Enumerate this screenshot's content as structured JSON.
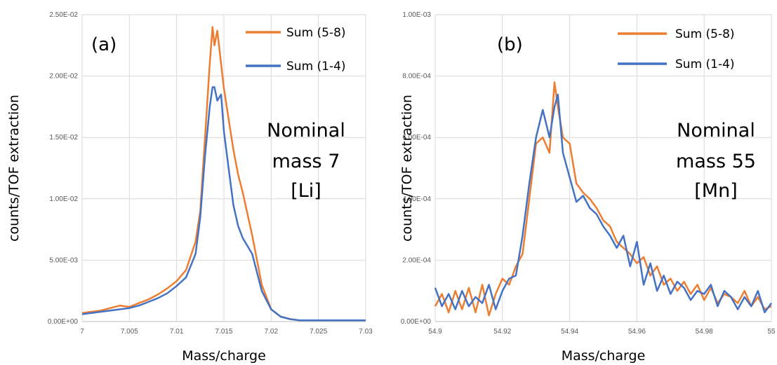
{
  "colors": {
    "orange": "#ED7D31",
    "blue": "#4472C4"
  },
  "chart_data": [
    {
      "type": "line",
      "panel_label": "(a)",
      "xlabel": "Mass/charge",
      "ylabel": "counts/TOF extraction",
      "xlim": [
        7,
        7.03
      ],
      "ylim": [
        0,
        0.025
      ],
      "x_ticks": [
        7,
        7.005,
        7.01,
        7.015,
        7.02,
        7.025,
        7.03
      ],
      "x_tick_labels": [
        "7",
        "7.005",
        "7.01",
        "7.015",
        "7.02",
        "7.025",
        "7.03"
      ],
      "y_ticks": [
        0,
        0.005,
        0.01,
        0.015,
        0.02,
        0.025
      ],
      "y_tick_labels": [
        "0.00E+00",
        "5.00E-03",
        "1.00E-02",
        "1.50E-02",
        "2.00E-02",
        "2.50E-02"
      ],
      "grid": true,
      "legend": "top-right",
      "annotation": [
        "Nominal",
        "mass 7",
        "[Li]"
      ],
      "series": [
        {
          "name": "Sum (5-8)",
          "color": "#ED7D31",
          "x": [
            7.0,
            7.001,
            7.002,
            7.003,
            7.004,
            7.005,
            7.006,
            7.007,
            7.008,
            7.009,
            7.01,
            7.011,
            7.012,
            7.0125,
            7.013,
            7.0135,
            7.0138,
            7.014,
            7.0143,
            7.0147,
            7.015,
            7.0155,
            7.016,
            7.0165,
            7.017,
            7.018,
            7.019,
            7.02,
            7.021,
            7.022,
            7.023,
            7.025,
            7.027,
            7.03
          ],
          "y": [
            0.0007,
            0.0008,
            0.0009,
            0.0011,
            0.0013,
            0.0012,
            0.0015,
            0.0018,
            0.0022,
            0.0027,
            0.0033,
            0.0042,
            0.0065,
            0.009,
            0.015,
            0.021,
            0.024,
            0.0225,
            0.0237,
            0.021,
            0.019,
            0.0165,
            0.014,
            0.012,
            0.0105,
            0.007,
            0.003,
            0.001,
            0.0004,
            0.0002,
            0.0001,
            0.0001,
            0.0001,
            0.0001
          ]
        },
        {
          "name": "Sum (1-4)",
          "color": "#4472C4",
          "x": [
            7.0,
            7.001,
            7.002,
            7.003,
            7.004,
            7.005,
            7.006,
            7.007,
            7.008,
            7.009,
            7.01,
            7.011,
            7.012,
            7.0125,
            7.013,
            7.0135,
            7.0138,
            7.014,
            7.0143,
            7.0147,
            7.015,
            7.0155,
            7.016,
            7.0165,
            7.017,
            7.018,
            7.019,
            7.02,
            7.021,
            7.022,
            7.023,
            7.025,
            7.027,
            7.03
          ],
          "y": [
            0.0006,
            0.0007,
            0.0008,
            0.0009,
            0.001,
            0.0011,
            0.0013,
            0.0016,
            0.0019,
            0.0023,
            0.0029,
            0.0036,
            0.0055,
            0.0085,
            0.0135,
            0.0175,
            0.0191,
            0.0191,
            0.018,
            0.0185,
            0.0155,
            0.0125,
            0.0095,
            0.0078,
            0.0068,
            0.0055,
            0.0025,
            0.001,
            0.0004,
            0.0002,
            0.0001,
            0.0001,
            0.0001,
            0.0001
          ]
        }
      ]
    },
    {
      "type": "line",
      "panel_label": "(b)",
      "xlabel": "Mass/charge",
      "ylabel": "counts/TOF extraction",
      "xlim": [
        54.9,
        55
      ],
      "ylim": [
        0,
        0.001
      ],
      "x_ticks": [
        54.9,
        54.92,
        54.94,
        54.96,
        54.98,
        55
      ],
      "x_tick_labels": [
        "54.9",
        "54.92",
        "54.94",
        "54.96",
        "54.98",
        "55"
      ],
      "y_ticks": [
        0,
        0.0002,
        0.0004,
        0.0006,
        0.0008,
        0.001
      ],
      "y_tick_labels": [
        "0.00E+00",
        "2.00E-04",
        "4.00E-04",
        "6.00E-04",
        "8.00E-04",
        "1.00E-03"
      ],
      "grid": true,
      "legend": "top-right",
      "annotation": [
        "Nominal",
        "mass 55",
        "[Mn]"
      ],
      "series": [
        {
          "name": "Sum (5-8)",
          "color": "#ED7D31",
          "x": [
            54.9,
            54.902,
            54.904,
            54.906,
            54.908,
            54.91,
            54.912,
            54.914,
            54.916,
            54.918,
            54.92,
            54.922,
            54.924,
            54.926,
            54.928,
            54.93,
            54.932,
            54.934,
            54.9355,
            54.9365,
            54.938,
            54.94,
            54.942,
            54.944,
            54.946,
            54.948,
            54.95,
            54.952,
            54.954,
            54.956,
            54.958,
            54.96,
            54.962,
            54.964,
            54.966,
            54.968,
            54.97,
            54.972,
            54.974,
            54.976,
            54.978,
            54.98,
            54.982,
            54.984,
            54.986,
            54.988,
            54.99,
            54.992,
            54.994,
            54.996,
            54.998,
            55
          ],
          "y": [
            5e-05,
            9e-05,
            3e-05,
            0.0001,
            4e-05,
            0.00011,
            3e-05,
            0.00012,
            2e-05,
            9e-05,
            0.00014,
            0.00012,
            0.00018,
            0.00022,
            0.0004,
            0.00058,
            0.0006,
            0.00055,
            0.00078,
            0.0007,
            0.0006,
            0.00058,
            0.00045,
            0.00042,
            0.0004,
            0.00037,
            0.00033,
            0.00031,
            0.00026,
            0.00024,
            0.00022,
            0.00019,
            0.00021,
            0.00015,
            0.00018,
            0.00012,
            0.00014,
            0.0001,
            0.00013,
            9e-05,
            0.00012,
            7e-05,
            0.00011,
            6e-05,
            9e-05,
            8e-05,
            6e-05,
            0.0001,
            5e-05,
            8e-05,
            4e-05,
            5e-05
          ]
        },
        {
          "name": "Sum (1-4)",
          "color": "#4472C4",
          "x": [
            54.9,
            54.902,
            54.904,
            54.906,
            54.908,
            54.91,
            54.912,
            54.914,
            54.916,
            54.918,
            54.92,
            54.922,
            54.924,
            54.926,
            54.928,
            54.93,
            54.932,
            54.934,
            54.9355,
            54.9365,
            54.938,
            54.94,
            54.942,
            54.944,
            54.946,
            54.948,
            54.95,
            54.952,
            54.954,
            54.956,
            54.958,
            54.96,
            54.962,
            54.964,
            54.966,
            54.968,
            54.97,
            54.972,
            54.974,
            54.976,
            54.978,
            54.98,
            54.982,
            54.984,
            54.986,
            54.988,
            54.99,
            54.992,
            54.994,
            54.996,
            54.998,
            55
          ],
          "y": [
            0.00011,
            5e-05,
            9e-05,
            4e-05,
            0.0001,
            5e-05,
            8e-05,
            6e-05,
            0.00012,
            4e-05,
            0.0001,
            0.00014,
            0.00015,
            0.00028,
            0.00045,
            0.0006,
            0.00069,
            0.0006,
            0.0007,
            0.00074,
            0.00055,
            0.00047,
            0.00039,
            0.00041,
            0.00037,
            0.00035,
            0.00031,
            0.00028,
            0.00024,
            0.00028,
            0.00018,
            0.00026,
            0.00012,
            0.00019,
            0.0001,
            0.00015,
            9e-05,
            0.00013,
            0.00011,
            7e-05,
            0.0001,
            9e-05,
            0.00012,
            5e-05,
            0.0001,
            8e-05,
            4e-05,
            8e-05,
            5e-05,
            0.0001,
            3e-05,
            6e-05
          ]
        }
      ]
    }
  ]
}
